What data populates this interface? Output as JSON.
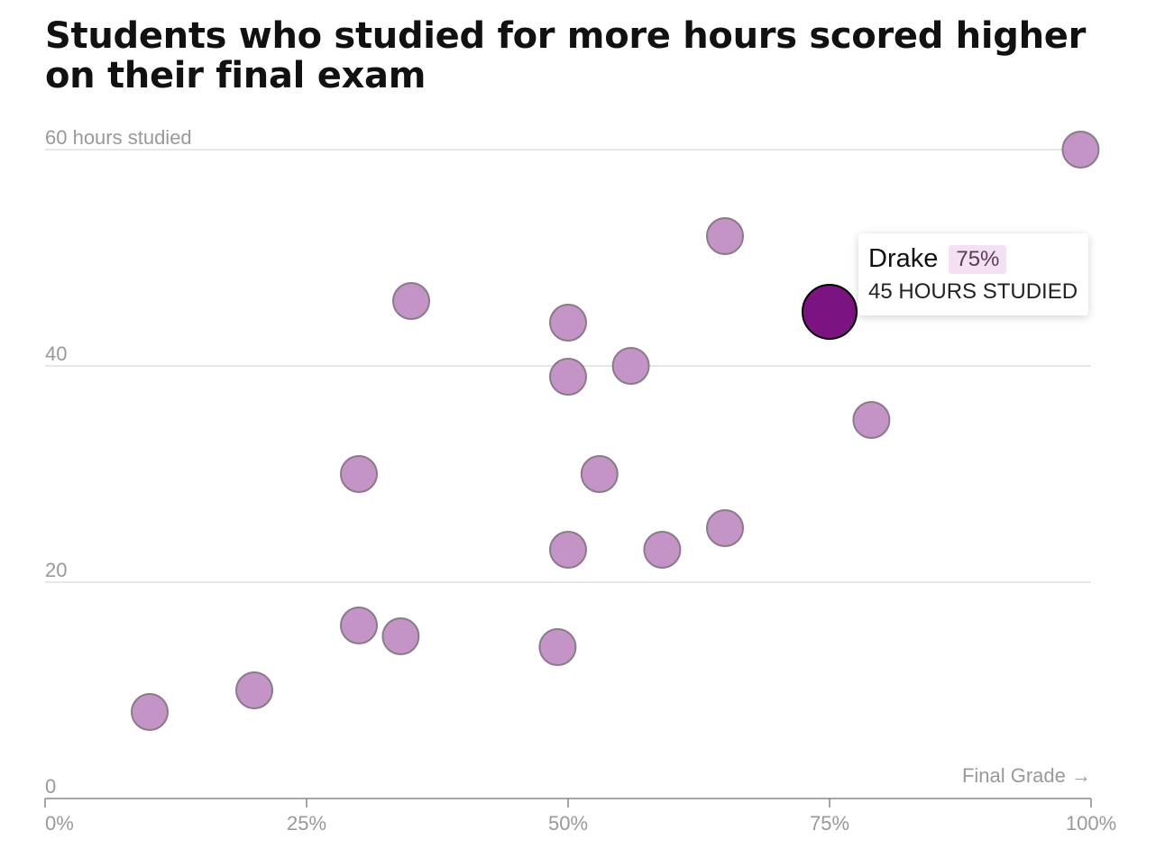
{
  "chart_data": {
    "type": "scatter",
    "title": "Students who studied for more hours scored higher on their final exam",
    "ylabel": "60 hours studied",
    "xlabel": "Final Grade →",
    "xlim": [
      0,
      100
    ],
    "ylim": [
      0,
      60
    ],
    "x_ticks": [
      {
        "value": 0,
        "label": "0%"
      },
      {
        "value": 25,
        "label": "25%"
      },
      {
        "value": 50,
        "label": "50%"
      },
      {
        "value": 75,
        "label": "75%"
      },
      {
        "value": 100,
        "label": "100%"
      }
    ],
    "y_ticks": [
      {
        "value": 0,
        "label": "0"
      },
      {
        "value": 20,
        "label": "20"
      },
      {
        "value": 40,
        "label": "40"
      },
      {
        "value": 60,
        "label": "60 hours studied"
      }
    ],
    "grid": true,
    "points": [
      {
        "x": 10,
        "y": 8
      },
      {
        "x": 20,
        "y": 10
      },
      {
        "x": 30,
        "y": 16
      },
      {
        "x": 34,
        "y": 15
      },
      {
        "x": 49,
        "y": 14
      },
      {
        "x": 30,
        "y": 30
      },
      {
        "x": 35,
        "y": 46
      },
      {
        "x": 50,
        "y": 44
      },
      {
        "x": 50,
        "y": 39
      },
      {
        "x": 56,
        "y": 40
      },
      {
        "x": 53,
        "y": 30
      },
      {
        "x": 50,
        "y": 23
      },
      {
        "x": 59,
        "y": 23
      },
      {
        "x": 65,
        "y": 25
      },
      {
        "x": 65,
        "y": 52
      },
      {
        "x": 79,
        "y": 35
      },
      {
        "x": 99,
        "y": 60
      },
      {
        "x": 75,
        "y": 45,
        "name": "Drake",
        "highlighted": true
      }
    ],
    "tooltip": {
      "name": "Drake",
      "grade_label": "75%",
      "hours_label": "45 hours studied"
    },
    "colors": {
      "point_fill": "#c394c5",
      "point_stroke": "#8a7a8a",
      "highlight_fill": "#7b1480",
      "highlight_stroke": "#000000",
      "grid": "#dddddd",
      "axis": "#888888",
      "tick_text": "#999999",
      "badge_bg": "#f3e1f3"
    }
  }
}
